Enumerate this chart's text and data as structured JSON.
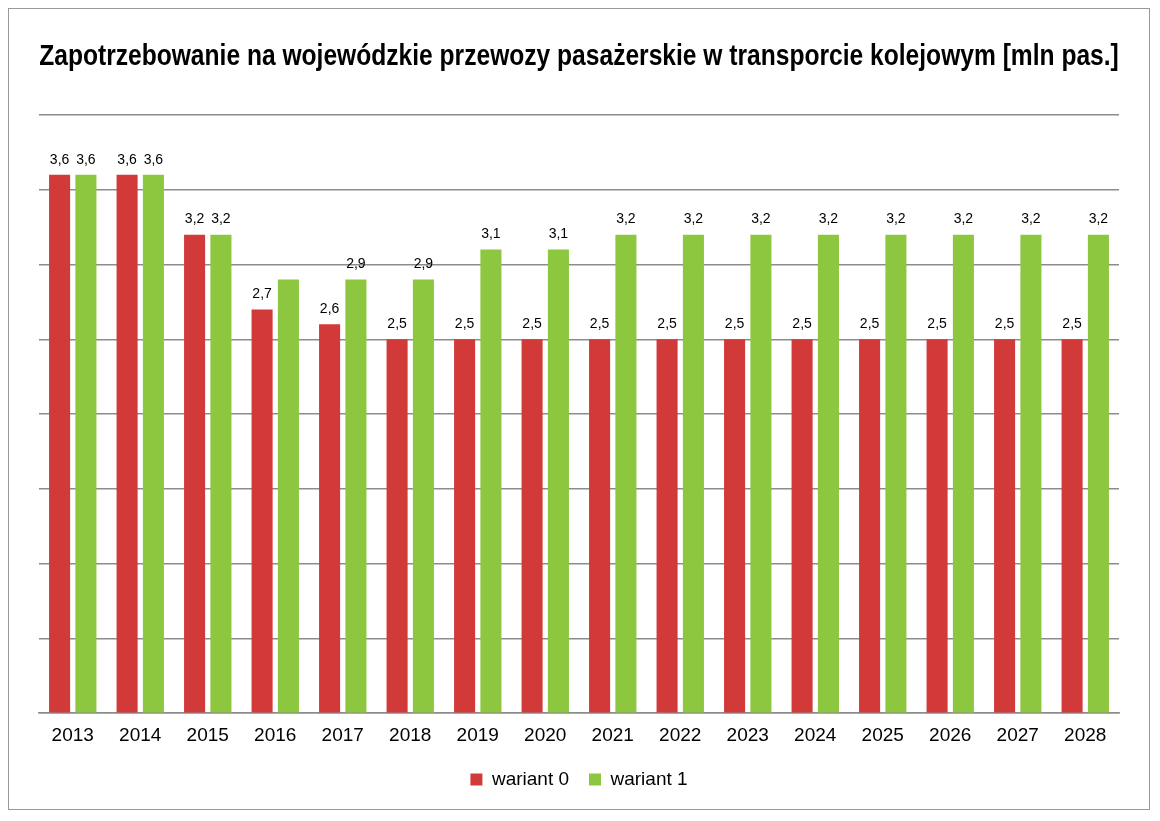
{
  "chart_data": {
    "type": "bar",
    "title": "Zapotrzebowanie na wojewódzkie przewozy pasażerskie w transporcie kolejowym [mln pas.]",
    "categories": [
      "2013",
      "2014",
      "2015",
      "2016",
      "2017",
      "2018",
      "2019",
      "2020",
      "2021",
      "2022",
      "2023",
      "2024",
      "2025",
      "2026",
      "2027",
      "2028"
    ],
    "series": [
      {
        "name": "wariant 0",
        "color": "#d23a3a",
        "values": [
          3.6,
          3.6,
          3.2,
          2.7,
          2.6,
          2.5,
          2.5,
          2.5,
          2.5,
          2.5,
          2.5,
          2.5,
          2.5,
          2.5,
          2.5,
          2.5
        ],
        "value_labels": [
          "3,6",
          "3,6",
          "3,2",
          "2,7",
          "2,6",
          "2,5",
          "2,5",
          "2,5",
          "2,5",
          "2,5",
          "2,5",
          "2,5",
          "2,5",
          "2,5",
          "2,5",
          "2,5"
        ]
      },
      {
        "name": "wariant 1",
        "color": "#8dc63f",
        "values": [
          3.6,
          3.6,
          3.2,
          2.9,
          2.9,
          2.9,
          3.1,
          3.1,
          3.2,
          3.2,
          3.2,
          3.2,
          3.2,
          3.2,
          3.2,
          3.2
        ],
        "value_labels": [
          "3,6",
          "3,6",
          "3,2",
          null,
          "2,9",
          "2,9",
          "3,1",
          "3,1",
          "3,2",
          "3,2",
          "3,2",
          "3,2",
          "3,2",
          "3,2",
          "3,2",
          "3,2"
        ]
      }
    ],
    "ylim": [
      0,
      4
    ],
    "yticks": [
      {
        "value": 0,
        "label": null
      },
      {
        "value": 0.5,
        "label": null
      },
      {
        "value": 1,
        "label": null
      },
      {
        "value": 1.5,
        "label": null
      },
      {
        "value": 2,
        "label": null
      },
      {
        "value": 2.5,
        "label": null
      },
      {
        "value": 3,
        "label": null
      },
      {
        "value": 3.5,
        "label": null
      },
      {
        "value": 4,
        "label": null
      }
    ],
    "grid": "y",
    "legend": "bottom",
    "tick_labels": "x"
  }
}
